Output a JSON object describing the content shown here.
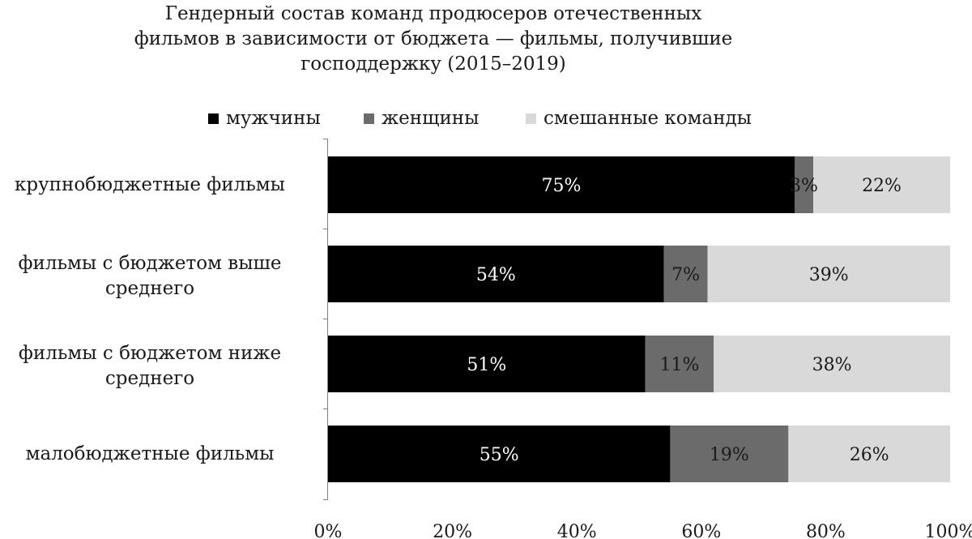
{
  "chart_data": {
    "type": "bar",
    "orientation": "horizontal",
    "stacked": true,
    "percent_stacked": true,
    "title_lines": [
      "Гендерный состав команд продюсеров отечественных",
      "фильмов в зависимости от бюджета — фильмы, получившие",
      "господдержку (2015–2019)"
    ],
    "categories": [
      "крупнобюджетные фильмы",
      "фильмы с бюджетом выше среднего",
      "фильмы с бюджетом ниже среднего",
      "малобюджетные фильмы"
    ],
    "category_label_lines": [
      [
        "крупнобюджетные фильмы"
      ],
      [
        "фильмы с бюджетом выше",
        "среднего"
      ],
      [
        "фильмы с бюджетом ниже",
        "среднего"
      ],
      [
        "малобюджетные фильмы"
      ]
    ],
    "series": [
      {
        "name": "мужчины",
        "color": "#000000",
        "label_color": "#ffffff",
        "values": [
          75,
          54,
          51,
          55
        ],
        "labels": [
          "75%",
          "54%",
          "51%",
          "55%"
        ]
      },
      {
        "name": "женщины",
        "color": "#6b6b6b",
        "label_color": "#1a1a1a",
        "values": [
          3,
          7,
          11,
          19
        ],
        "labels": [
          "3%",
          "7%",
          "11%",
          "19%"
        ]
      },
      {
        "name": "смешанные команды",
        "color": "#d9d9d9",
        "label_color": "#1a1a1a",
        "values": [
          22,
          39,
          38,
          26
        ],
        "labels": [
          "22%",
          "39%",
          "38%",
          "26%"
        ]
      }
    ],
    "x_ticks": [
      "0%",
      "20%",
      "40%",
      "60%",
      "80%",
      "100%"
    ],
    "xlim": [
      0,
      100
    ],
    "xlabel": "",
    "ylabel": "",
    "grid": false,
    "legend_position": "top"
  }
}
